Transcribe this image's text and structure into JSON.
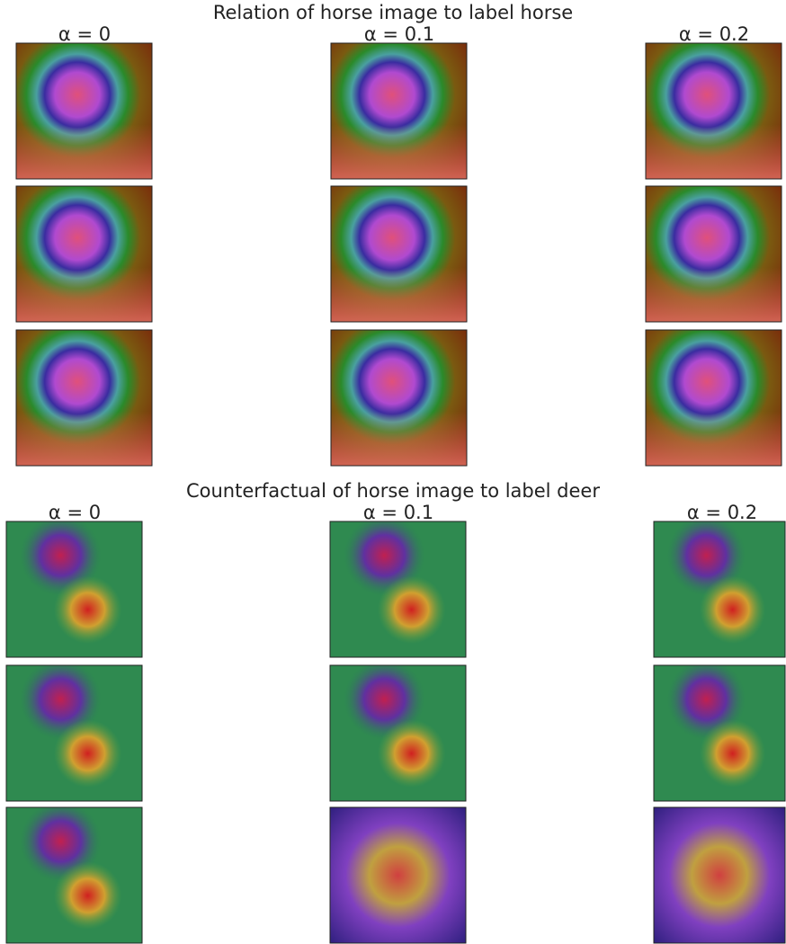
{
  "panels": [
    {
      "title": "Relation of horse image to label horse",
      "columns": [
        "α = 0",
        "α = 0.1",
        "α = 0.2"
      ]
    },
    {
      "title": "Counterfactual of horse image to label deer",
      "columns": [
        "α = 0",
        "α = 0.1",
        "α = 0.2"
      ]
    }
  ]
}
